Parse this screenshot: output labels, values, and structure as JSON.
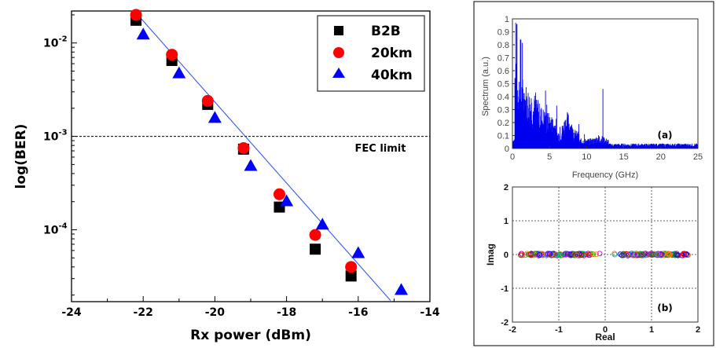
{
  "chart_data": [
    {
      "type": "scatter",
      "xlabel": "Rx power (dBm)",
      "ylabel": "log(BER)",
      "xlim": [
        -24,
        -14
      ],
      "ylim": [
        1.7e-05,
        0.022
      ],
      "yscale": "log",
      "xticks": [
        "-24",
        "-22",
        "-20",
        "-18",
        "-16",
        "-14"
      ],
      "yticks": [
        {
          "value": 0.01,
          "base": "10",
          "exp": "-2"
        },
        {
          "value": 0.001,
          "base": "10",
          "exp": "-3"
        },
        {
          "value": 0.0001,
          "base": "10",
          "exp": "-4"
        }
      ],
      "legend_position": "top-right",
      "series": [
        {
          "name": "B2B",
          "marker": "square",
          "color": "#000000",
          "x": [
            -22.2,
            -21.2,
            -20.2,
            -19.2,
            -18.2,
            -17.2,
            -16.2
          ],
          "y": [
            0.0175,
            0.0065,
            0.0022,
            0.00073,
            0.000175,
            6.2e-05,
            3.2e-05
          ]
        },
        {
          "name": "20km",
          "marker": "circle",
          "color": "#ff0000",
          "x": [
            -22.2,
            -21.2,
            -20.2,
            -19.2,
            -18.2,
            -17.2,
            -16.2
          ],
          "y": [
            0.02,
            0.0075,
            0.0024,
            0.00075,
            0.00024,
            8.8e-05,
            4e-05
          ]
        },
        {
          "name": "40km",
          "marker": "triangle",
          "color": "#0000ff",
          "x": [
            -22,
            -21,
            -20,
            -19,
            -18,
            -17,
            -16,
            -14.8
          ],
          "y": [
            0.0125,
            0.0048,
            0.0016,
            0.00049,
            0.000205,
            0.000115,
            5.7e-05,
            2.3e-05
          ]
        }
      ],
      "fit_line": {
        "color": "#3355ff",
        "x": [
          -22.2,
          -15.1
        ],
        "y": [
          0.021,
          1.75e-05
        ]
      },
      "threshold": {
        "value": 0.001,
        "label": "FEC limit"
      }
    },
    {
      "type": "area",
      "panel_label": "(a)",
      "xlabel": "Frequency (GHz)",
      "ylabel": "Spectrum (a.u.)",
      "xlim": [
        0,
        25
      ],
      "ylim": [
        0,
        1
      ],
      "xticks": [
        "0",
        "5",
        "10",
        "15",
        "20",
        "25"
      ],
      "yticks": [
        "0",
        "0.1",
        "0.2",
        "0.3",
        "0.4",
        "0.5",
        "0.6",
        "0.7",
        "0.8",
        "0.9",
        "1"
      ],
      "color": "#0000ee"
    },
    {
      "type": "scatter",
      "panel_label": "(b)",
      "xlabel": "Real",
      "ylabel": "Imag",
      "xlim": [
        -2,
        2
      ],
      "ylim": [
        -2,
        2
      ],
      "xticks": [
        "-2",
        "-1",
        "0",
        "1",
        "2"
      ],
      "yticks": [
        "-2",
        "-1",
        "0",
        "1",
        "2"
      ],
      "clusters": [
        {
          "center": -1,
          "spread": 0.9
        },
        {
          "center": 1,
          "spread": 0.9
        }
      ],
      "grid": true
    }
  ]
}
